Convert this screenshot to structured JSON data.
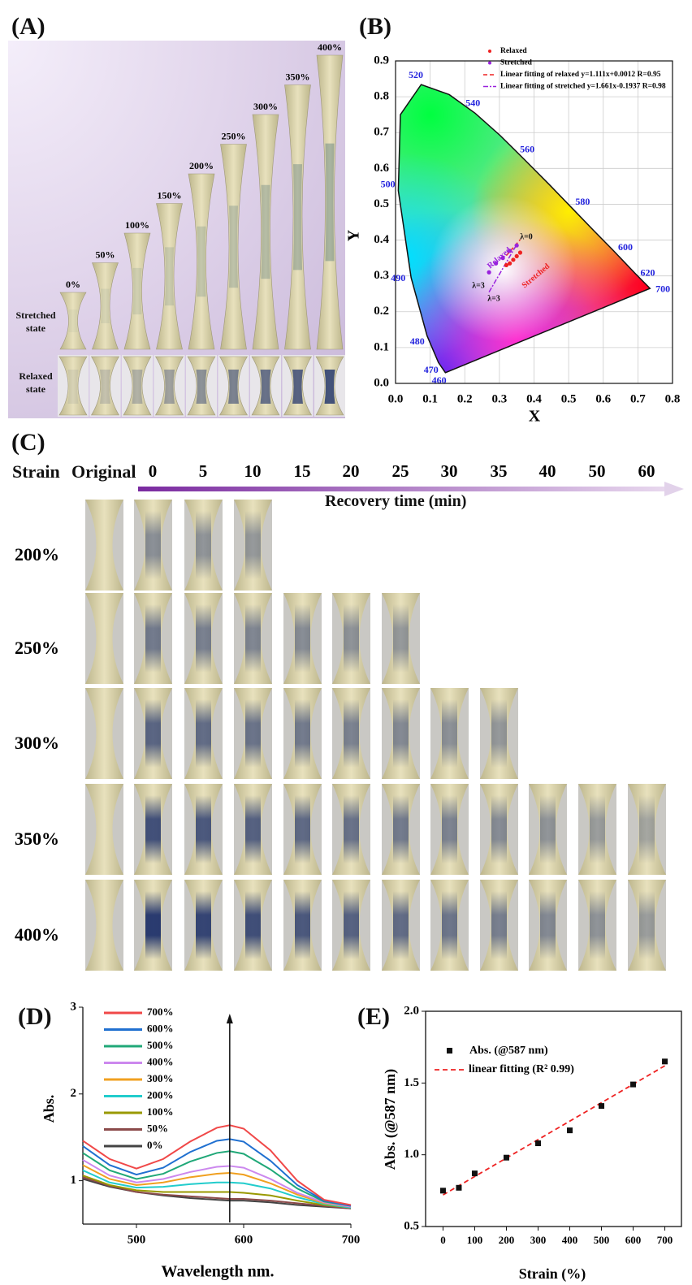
{
  "panels": {
    "a": "(A)",
    "b": "(B)",
    "c": "(C)",
    "d": "(D)",
    "e": "(E)"
  },
  "photo_a": {
    "strains": [
      "0%",
      "50%",
      "100%",
      "150%",
      "200%",
      "250%",
      "300%",
      "350%",
      "400%"
    ],
    "stretched_label": "Stretched state",
    "relaxed_label": "Relaxed state"
  },
  "photo_c": {
    "strain_header": "Strain",
    "original_header": "Original",
    "times": [
      "0",
      "5",
      "10",
      "15",
      "20",
      "25",
      "30",
      "35",
      "40",
      "50",
      "60"
    ],
    "arrow_label": "Recovery time (min)",
    "strains": [
      "200%",
      "250%",
      "300%",
      "350%",
      "400%"
    ]
  },
  "chart_data": [
    {
      "type": "chromaticity",
      "xlabel": "X",
      "ylabel": "Y",
      "xlim": [
        0,
        0.8
      ],
      "ylim": [
        0,
        0.9
      ],
      "xticks": [
        {
          "value": 0,
          "label": "0.0"
        },
        {
          "value": 0.1,
          "label": "0.1"
        },
        {
          "value": 0.2,
          "label": "0.2"
        },
        {
          "value": 0.3,
          "label": "0.3"
        },
        {
          "value": 0.4,
          "label": "0.4"
        },
        {
          "value": 0.5,
          "label": "0.5"
        },
        {
          "value": 0.6,
          "label": "0.6"
        },
        {
          "value": 0.7,
          "label": "0.7"
        },
        {
          "value": 0.8,
          "label": "0.8"
        }
      ],
      "yticks": [
        {
          "value": 0,
          "label": "0.0"
        },
        {
          "value": 0.1,
          "label": "0.1"
        },
        {
          "value": 0.2,
          "label": "0.2"
        },
        {
          "value": 0.3,
          "label": "0.3"
        },
        {
          "value": 0.4,
          "label": "0.4"
        },
        {
          "value": 0.5,
          "label": "0.5"
        },
        {
          "value": 0.6,
          "label": "0.6"
        },
        {
          "value": 0.7,
          "label": "0.7"
        },
        {
          "value": 0.8,
          "label": "0.8"
        },
        {
          "value": 0.9,
          "label": "0.9"
        }
      ],
      "grid": true,
      "locus": {
        "wavelengths": [
          460,
          470,
          480,
          490,
          500,
          null,
          520,
          null,
          540,
          null,
          560,
          null,
          580,
          null,
          600,
          620,
          700
        ],
        "x": [
          0.144,
          0.124,
          0.091,
          0.045,
          0.008,
          0.014,
          0.074,
          0.155,
          0.23,
          0.302,
          0.373,
          0.444,
          0.512,
          0.575,
          0.627,
          0.691,
          0.735
        ],
        "y": [
          0.03,
          0.058,
          0.133,
          0.295,
          0.538,
          0.75,
          0.834,
          0.806,
          0.754,
          0.692,
          0.624,
          0.555,
          0.487,
          0.424,
          0.373,
          0.308,
          0.265
        ]
      },
      "series": [
        {
          "name": "Relaxed",
          "color": "#ee2222",
          "x": [
            0.32,
            0.33,
            0.34,
            0.35,
            0.36
          ],
          "values": [
            0.33,
            0.335,
            0.345,
            0.355,
            0.365
          ]
        },
        {
          "name": "Stretched",
          "color": "#9922dd",
          "x": [
            0.27,
            0.29,
            0.31,
            0.33,
            0.35
          ],
          "values": [
            0.31,
            0.335,
            0.35,
            0.37,
            0.385
          ]
        }
      ],
      "fits": [
        {
          "name": "Linear fitting of relaxed y=1.111x+0.0012 R=0.95",
          "color": "#ee2222",
          "slope": 1.111,
          "intercept": 0.0012
        },
        {
          "name": "Linear fitting of stretched y=1.661x-0.1937 R=0.98",
          "color": "#9922dd",
          "slope": 1.661,
          "intercept": -0.1937
        }
      ],
      "annotations": [
        "λ=0",
        "λ=3",
        "λ=3",
        "Relaxed",
        "Stretched"
      ]
    },
    {
      "type": "line",
      "xlabel": "Wavelength nm.",
      "ylabel": "Abs.",
      "x": [
        450,
        475,
        500,
        525,
        550,
        575,
        587,
        600,
        625,
        650,
        675,
        700
      ],
      "xlim": [
        450,
        700
      ],
      "ylim": [
        0.5,
        3
      ],
      "xticks": [
        500,
        600,
        700
      ],
      "yticks": [
        1,
        2,
        3
      ],
      "series": [
        {
          "name": "700%",
          "color": "#f04848",
          "values": [
            1.46,
            1.25,
            1.14,
            1.25,
            1.45,
            1.61,
            1.64,
            1.6,
            1.35,
            1.0,
            0.78,
            0.72
          ]
        },
        {
          "name": "600%",
          "color": "#2070d0",
          "values": [
            1.4,
            1.18,
            1.07,
            1.15,
            1.33,
            1.46,
            1.48,
            1.45,
            1.23,
            0.95,
            0.77,
            0.71
          ]
        },
        {
          "name": "500%",
          "color": "#20a878",
          "values": [
            1.32,
            1.12,
            1.02,
            1.08,
            1.22,
            1.32,
            1.34,
            1.31,
            1.13,
            0.91,
            0.76,
            0.71
          ]
        },
        {
          "name": "400%",
          "color": "#cc88ee",
          "values": [
            1.24,
            1.06,
            0.98,
            1.02,
            1.1,
            1.16,
            1.17,
            1.15,
            1.02,
            0.86,
            0.75,
            0.7
          ]
        },
        {
          "name": "300%",
          "color": "#f0a020",
          "values": [
            1.18,
            1.02,
            0.95,
            0.98,
            1.04,
            1.08,
            1.09,
            1.07,
            0.97,
            0.84,
            0.74,
            0.7
          ]
        },
        {
          "name": "200%",
          "color": "#22cccc",
          "values": [
            1.12,
            0.98,
            0.92,
            0.93,
            0.96,
            0.98,
            0.98,
            0.97,
            0.91,
            0.81,
            0.73,
            0.69
          ]
        },
        {
          "name": "100%",
          "color": "#999900",
          "values": [
            1.06,
            0.95,
            0.89,
            0.87,
            0.87,
            0.87,
            0.87,
            0.86,
            0.83,
            0.77,
            0.72,
            0.69
          ]
        },
        {
          "name": "50%",
          "color": "#8b4a4a",
          "values": [
            1.04,
            0.94,
            0.87,
            0.84,
            0.82,
            0.8,
            0.79,
            0.79,
            0.77,
            0.74,
            0.71,
            0.68
          ]
        },
        {
          "name": "0%",
          "color": "#444444",
          "values": [
            1.02,
            0.93,
            0.87,
            0.83,
            0.8,
            0.78,
            0.77,
            0.77,
            0.75,
            0.72,
            0.7,
            0.68
          ]
        }
      ]
    },
    {
      "type": "scatter",
      "xlabel": "Strain (%)",
      "ylabel": "Abs. (@587 nm)",
      "xlim": [
        -55,
        755
      ],
      "ylim": [
        0.5,
        2.0
      ],
      "xticks": [
        0,
        100,
        200,
        300,
        400,
        500,
        600,
        700
      ],
      "yticks": [
        {
          "value": 0.5,
          "label": "0.5"
        },
        {
          "value": 1.0,
          "label": "1.0"
        },
        {
          "value": 1.5,
          "label": "1.5"
        },
        {
          "value": 2.0,
          "label": "2.0"
        }
      ],
      "series": [
        {
          "name": "Abs. (@587 nm)",
          "color": "#111111",
          "x": [
            0,
            50,
            100,
            200,
            300,
            400,
            500,
            600,
            700
          ],
          "values": [
            0.75,
            0.77,
            0.87,
            0.98,
            1.08,
            1.17,
            1.34,
            1.49,
            1.65
          ]
        }
      ],
      "fit": {
        "name": "linear fitting (R² 0.99)",
        "color": "#ee2222",
        "x": [
          0,
          700
        ],
        "values": [
          0.72,
          1.62
        ]
      }
    }
  ]
}
